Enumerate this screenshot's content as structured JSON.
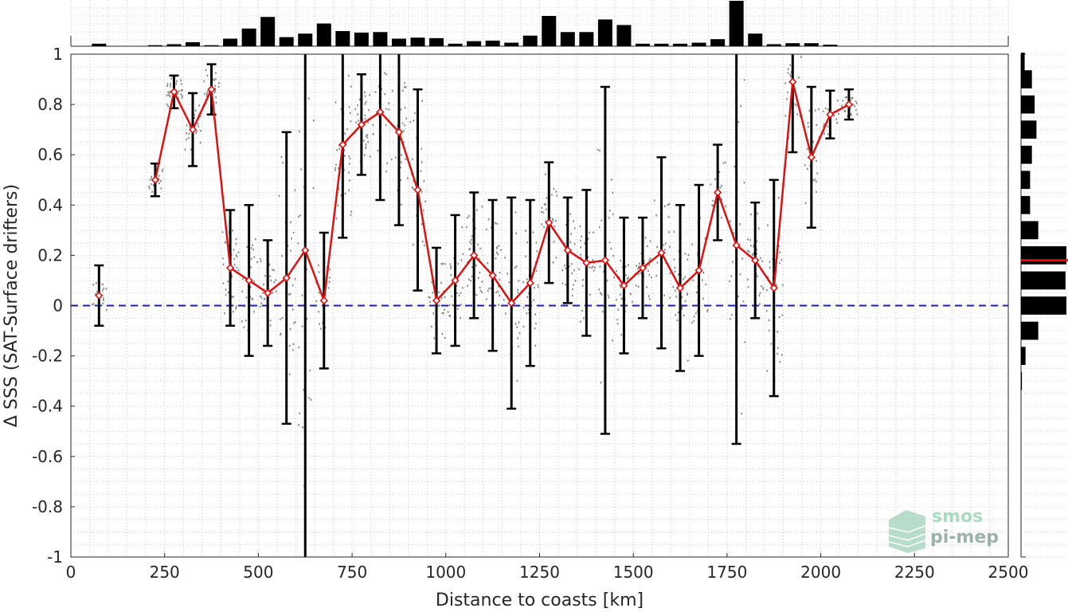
{
  "chart_data": {
    "type": "line",
    "xlabel": "Distance to coasts [km]",
    "ylabel": "Δ SSS (SAT-Surface drifters)",
    "xlim": [
      0,
      2500
    ],
    "ylim": [
      -1,
      1
    ],
    "x_ticks": [
      "0",
      "250",
      "500",
      "750",
      "1000",
      "1250",
      "1500",
      "1750",
      "2000",
      "2250",
      "2500"
    ],
    "y_ticks": [
      "-1",
      "-0.8",
      "-0.6",
      "-0.4",
      "-0.2",
      "0",
      "0.2",
      "0.4",
      "0.6",
      "0.8",
      "1"
    ],
    "grid": true,
    "reference_line": {
      "y": 0,
      "style": "dashed",
      "color": "#1a1acc"
    },
    "colors": {
      "mean_line": "#dd1111",
      "error_bars": "#000000",
      "scatter": "#808080",
      "histogram": "#000000"
    },
    "binned_mean": {
      "x": [
        75,
        225,
        275,
        325,
        375,
        425,
        475,
        525,
        575,
        625,
        675,
        725,
        775,
        825,
        875,
        925,
        975,
        1025,
        1075,
        1125,
        1175,
        1225,
        1275,
        1325,
        1375,
        1425,
        1475,
        1525,
        1575,
        1625,
        1675,
        1725,
        1775,
        1825,
        1875,
        1925,
        1975,
        2025,
        2075
      ],
      "mean": [
        0.04,
        0.5,
        0.85,
        0.7,
        0.86,
        0.15,
        0.1,
        0.05,
        0.11,
        0.22,
        0.02,
        0.64,
        0.72,
        0.77,
        0.69,
        0.46,
        0.02,
        0.1,
        0.2,
        0.12,
        0.01,
        0.09,
        0.33,
        0.22,
        0.17,
        0.18,
        0.08,
        0.15,
        0.21,
        0.07,
        0.14,
        0.45,
        0.24,
        0.18,
        0.07,
        0.89,
        0.59,
        0.76,
        0.8
      ],
      "std": [
        0.12,
        0.065,
        0.065,
        0.145,
        0.1,
        0.23,
        0.3,
        0.21,
        0.58,
        1.3,
        0.27,
        0.37,
        0.2,
        0.35,
        0.37,
        0.4,
        0.21,
        0.26,
        0.25,
        0.3,
        0.42,
        0.33,
        0.24,
        0.21,
        0.29,
        0.69,
        0.27,
        0.2,
        0.38,
        0.33,
        0.34,
        0.19,
        0.79,
        0.23,
        0.43,
        0.28,
        0.28,
        0.095,
        0.06
      ]
    },
    "x_histogram": {
      "x": [
        75,
        225,
        275,
        325,
        375,
        425,
        475,
        525,
        575,
        625,
        675,
        725,
        775,
        825,
        875,
        925,
        975,
        1025,
        1075,
        1125,
        1175,
        1225,
        1275,
        1325,
        1375,
        1425,
        1475,
        1525,
        1575,
        1625,
        1675,
        1725,
        1775,
        1825,
        1875,
        1925,
        1975,
        2025,
        2075
      ],
      "counts": [
        5,
        2,
        4,
        8,
        2,
        15,
        35,
        58,
        18,
        25,
        45,
        30,
        27,
        28,
        15,
        17,
        16,
        5,
        10,
        11,
        7,
        21,
        60,
        28,
        28,
        53,
        42,
        5,
        5,
        5,
        7,
        14,
        90,
        25,
        4,
        6,
        6,
        3,
        0
      ]
    },
    "y_histogram": {
      "y": [
        0.97,
        0.9,
        0.8,
        0.7,
        0.6,
        0.5,
        0.4,
        0.3,
        0.2,
        0.1,
        0.0,
        -0.1,
        -0.2,
        -0.3
      ],
      "counts": [
        0.08,
        0.24,
        0.3,
        0.34,
        0.24,
        0.2,
        0.2,
        0.38,
        1.0,
        0.98,
        1.0,
        0.38,
        0.1,
        0.02
      ],
      "mean_marker": 0.18
    }
  },
  "logo": {
    "line1": "smos",
    "line2": "pi-mep"
  }
}
